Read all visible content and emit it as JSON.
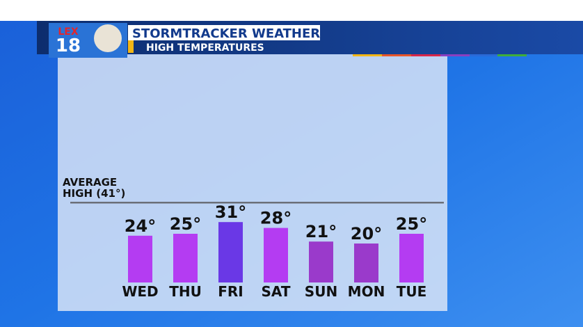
{
  "chart_data": {
    "type": "bar",
    "title": "STORMTRACKER WEATHER",
    "subtitle": "HIGH TEMPERATURES",
    "logo_text": [
      "LEX",
      "18"
    ],
    "categories": [
      "WED",
      "THU",
      "FRI",
      "SAT",
      "SUN",
      "MON",
      "TUE"
    ],
    "values": [
      24,
      25,
      31,
      28,
      21,
      20,
      25
    ],
    "value_labels": [
      "24°",
      "25°",
      "31°",
      "28°",
      "21°",
      "20°",
      "25°"
    ],
    "colors": [
      "#b43cf2",
      "#b43cf2",
      "#6a38e6",
      "#b43cf2",
      "#9a3acb",
      "#9a3acb",
      "#b43cf2"
    ],
    "reference_line": {
      "value": 41,
      "label": [
        "AVERAGE",
        "HIGH (41°)"
      ],
      "color": "#6b6f78"
    }
  }
}
